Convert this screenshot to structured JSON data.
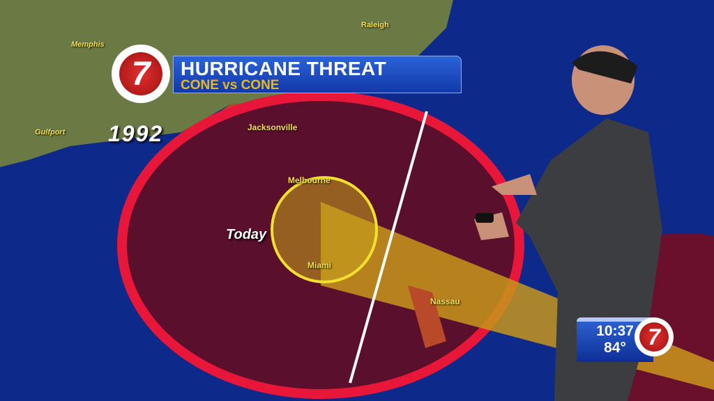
{
  "graphic": {
    "station_logo": "7",
    "title": "HURRICANE THREAT",
    "subtitle": "CONE vs CONE",
    "year_label": "1992",
    "today_label": "Today"
  },
  "map_labels": {
    "memphis": "Memphis",
    "raleigh": "Raleigh",
    "gulfport": "Gulfport",
    "jacksonville": "Jacksonville",
    "melbourne": "Melbourne",
    "miami": "Miami",
    "nassau": "Nassau"
  },
  "ticker": {
    "time": "10:37",
    "temperature": "84°",
    "logo": "7"
  },
  "colors": {
    "ocean": "#0d2a8a",
    "cone_ring": "#e8173a",
    "cone_fill": "#5a0f2c",
    "track": "#c8951c",
    "banner": "#1a46bc",
    "subtitle": "#e8b820"
  }
}
